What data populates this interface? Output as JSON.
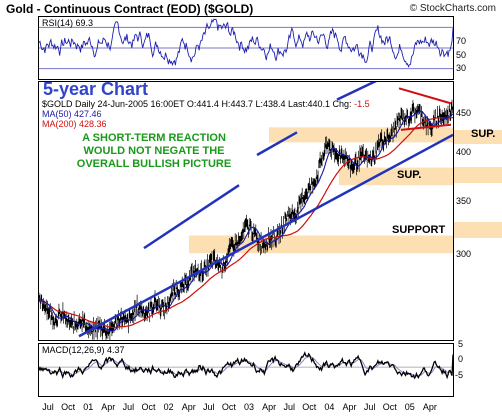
{
  "header": {
    "title": "Gold - Continuous Contract (EOD) ($GOLD)",
    "copyright": "© StockCharts.com"
  },
  "rsi": {
    "label": "RSI(14) 69.3",
    "levels": [
      "70",
      "50",
      "30"
    ]
  },
  "price": {
    "big_label": "5-year Chart",
    "info_line": "$GOLD Daily  24-Jun-2005 16:00ET  O:441.4  H:443.7  L:438.4  Last:440.1",
    "chg_label": "Chg:",
    "chg_value": "-1.5",
    "ma50_label": "MA(50) 427.46",
    "ma200_label": "MA(200) 428.36",
    "annotation_lines": [
      "A SHORT-TERM REACTION",
      "WOULD NOT NEGATE THE",
      "OVERALL BULLISH PICTURE"
    ],
    "zones": [
      {
        "label": "SUP.",
        "color": "#fce0b4"
      },
      {
        "label": "SUP.",
        "color": "#fce0b4"
      },
      {
        "label": "SUPPORT",
        "color": "#fce0b4"
      }
    ],
    "y_ticks": [
      "450",
      "400",
      "350",
      "300"
    ]
  },
  "macd": {
    "label": "MACD(12,26,9) 4.37",
    "y_ticks": [
      "5",
      "0",
      "-5"
    ]
  },
  "x_axis": {
    "labels": [
      "Jul",
      "Oct",
      "01",
      "Apr",
      "Jul",
      "Oct",
      "02",
      "Apr",
      "Jul",
      "Oct",
      "03",
      "Apr",
      "Jul",
      "Oct",
      "04",
      "Apr",
      "Jul",
      "Oct",
      "05",
      "Apr"
    ]
  },
  "colors": {
    "price_bars": "#000000",
    "ma50": "#1a1aa8",
    "ma200": "#d01010",
    "channel": "#2233bb",
    "rsi_line": "#2020b0",
    "annotation": "#1a9a1a",
    "big_label": "#3344cc",
    "zone": "#fce0b4"
  },
  "chart_data": [
    {
      "type": "line",
      "title": "RSI(14) 69.3",
      "ylim": [
        20,
        80
      ],
      "reference_lines": [
        70,
        50,
        30
      ],
      "series": [
        {
          "name": "RSI(14)",
          "last": 69.3
        }
      ]
    },
    {
      "type": "line",
      "title": "Gold - Continuous Contract (EOD) ($GOLD)",
      "ylabel": "",
      "ylim": [
        255,
        460
      ],
      "x": [
        "Jul 2000",
        "Oct 2000",
        "Jan 2001",
        "Apr 2001",
        "Jul 2001",
        "Oct 2001",
        "Jan 2002",
        "Apr 2002",
        "Jul 2002",
        "Oct 2002",
        "Jan 2003",
        "Apr 2003",
        "Jul 2003",
        "Oct 2003",
        "Jan 2004",
        "Apr 2004",
        "Jul 2004",
        "Oct 2004",
        "Jan 2005",
        "Apr 2005",
        "Jun 2005"
      ],
      "series": [
        {
          "name": "$GOLD",
          "values": [
            284,
            272,
            268,
            262,
            270,
            280,
            282,
            300,
            313,
            318,
            345,
            330,
            350,
            372,
            410,
            395,
            400,
            420,
            438,
            425,
            440.1
          ]
        },
        {
          "name": "MA(50)",
          "last": 427.46
        },
        {
          "name": "MA(200)",
          "last": 428.36
        }
      ],
      "ohlc_last": {
        "date": "24-Jun-2005",
        "open": 441.4,
        "high": 443.7,
        "low": 438.4,
        "last": 440.1,
        "chg": -1.5
      },
      "support_zones": [
        {
          "label": "SUP.",
          "range": [
            412,
            424
          ]
        },
        {
          "label": "SUP.",
          "range": [
            378,
            392
          ]
        },
        {
          "label": "SUPPORT",
          "range": [
            324,
            338
          ]
        }
      ]
    },
    {
      "type": "line",
      "title": "MACD(12,26,9) 4.37",
      "ylim": [
        -10,
        8
      ],
      "series": [
        {
          "name": "MACD(12,26,9)",
          "last": 4.37
        }
      ]
    }
  ]
}
